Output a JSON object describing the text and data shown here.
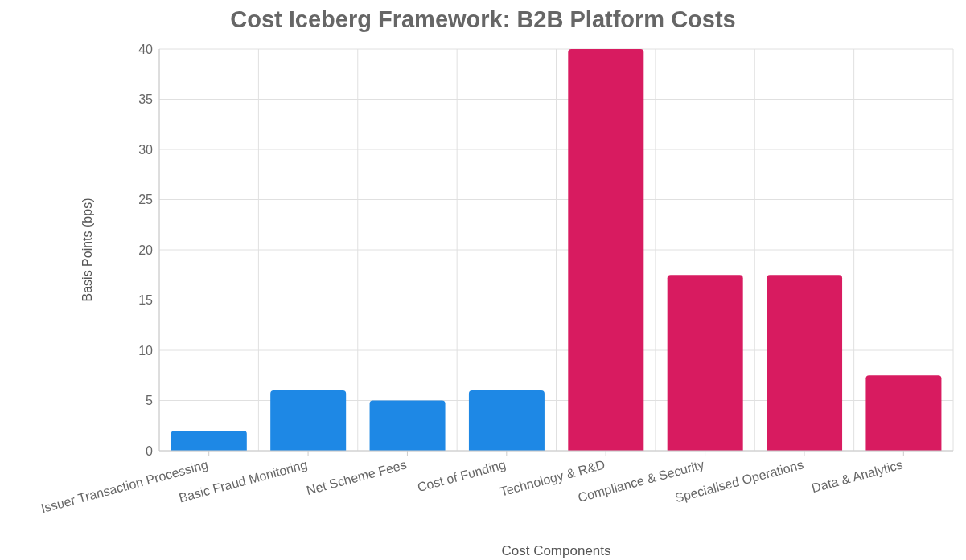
{
  "chart_data": {
    "type": "bar",
    "title": "Cost Iceberg Framework: B2B Platform Costs",
    "xlabel": "Cost Components",
    "ylabel": "Basis Points (bps)",
    "categories": [
      "Issuer Transaction Processing",
      "Basic Fraud Monitoring",
      "Net Scheme Fees",
      "Cost of Funding",
      "Technology & R&D",
      "Compliance & Security",
      "Specialised Operations",
      "Data & Analytics"
    ],
    "values": [
      2,
      6,
      5,
      6,
      40,
      17.5,
      17.5,
      7.5
    ],
    "colors": [
      "#1e88e5",
      "#1e88e5",
      "#1e88e5",
      "#1e88e5",
      "#d81b60",
      "#d81b60",
      "#d81b60",
      "#d81b60"
    ],
    "ylim": [
      0,
      40
    ],
    "yticks": [
      0,
      5,
      10,
      15,
      20,
      25,
      30,
      35,
      40
    ],
    "grid": true
  }
}
